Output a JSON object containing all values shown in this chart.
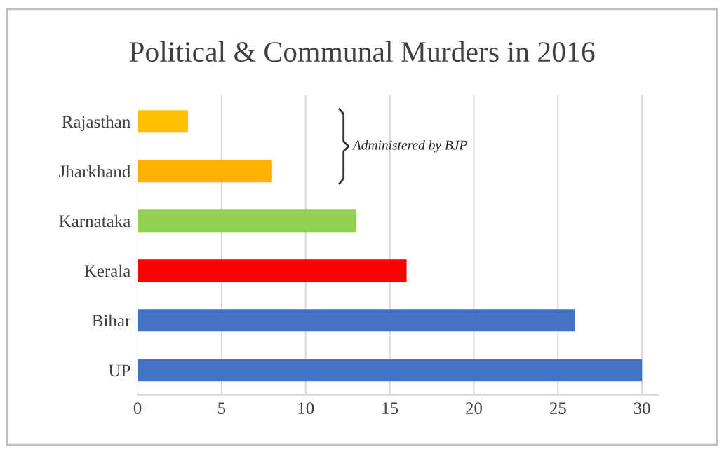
{
  "chart_data": {
    "type": "bar",
    "orientation": "horizontal",
    "title": "Political & Communal Murders in 2016",
    "categories": [
      "Rajasthan",
      "Jharkhand",
      "Karnataka",
      "Kerala",
      "Bihar",
      "UP"
    ],
    "values": [
      3,
      8,
      13,
      16,
      26,
      30
    ],
    "colors": [
      "#ffc000",
      "#ffb000",
      "#92d050",
      "#ff0000",
      "#4472c4",
      "#4472c4"
    ],
    "xlim": [
      0,
      31
    ],
    "xticks": [
      0,
      5,
      10,
      15,
      20,
      25,
      30
    ],
    "grid": "x",
    "legend": false,
    "annotations": [
      "Administered by BJP"
    ]
  }
}
